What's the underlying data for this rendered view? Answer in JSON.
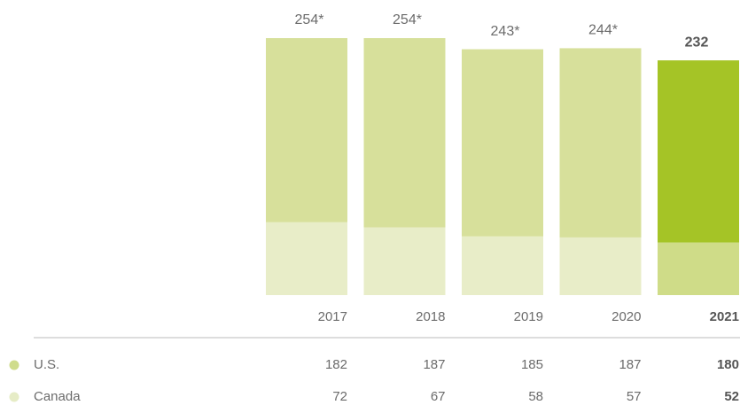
{
  "chart_data": {
    "type": "stacked_bar",
    "categories": [
      "2017",
      "2018",
      "2019",
      "2020",
      "2021"
    ],
    "series": [
      {
        "name": "U.S.",
        "color": "#d7e09b",
        "highlight_color": "#a5c426",
        "legend_color": "#cfdc8c",
        "values": [
          182,
          187,
          185,
          187,
          180
        ]
      },
      {
        "name": "Canada",
        "color": "#e8edc8",
        "highlight_color": "#cfdc88",
        "legend_color": "#e6ecc6",
        "values": [
          72,
          67,
          58,
          57,
          52
        ]
      }
    ],
    "totals": {
      "values": [
        254,
        254,
        243,
        244,
        232
      ],
      "value_labels": [
        "254*",
        "254*",
        "243*",
        "244*",
        "232"
      ]
    }
  }
}
